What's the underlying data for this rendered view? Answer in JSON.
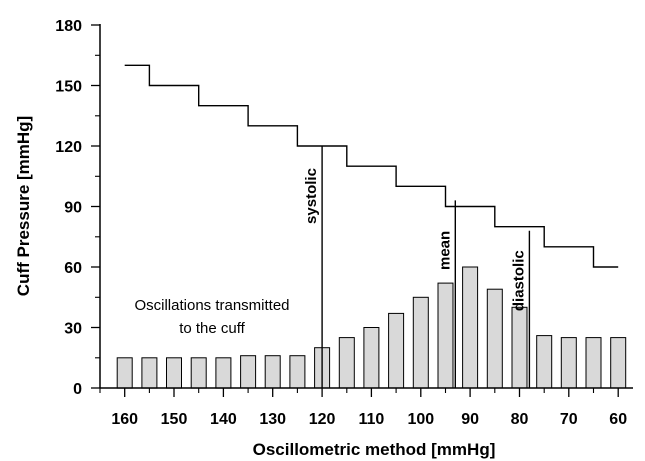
{
  "chart_data": {
    "type": "bar",
    "xlabel": "Oscillometric method [mmHg]",
    "ylabel": "Cuff Pressure [mmHg]",
    "xlim": [
      165,
      57
    ],
    "ylim": [
      0,
      180
    ],
    "x_ticks": [
      160,
      150,
      140,
      130,
      120,
      110,
      100,
      90,
      80,
      70,
      60
    ],
    "y_ticks": [
      0,
      30,
      60,
      90,
      120,
      150,
      180
    ],
    "grid": false,
    "bars": {
      "x": [
        160,
        155,
        150,
        145,
        140,
        135,
        130,
        125,
        120,
        115,
        110,
        105,
        100,
        95,
        90,
        85,
        80,
        75,
        70,
        65,
        60
      ],
      "values": [
        15,
        15,
        15,
        15,
        15,
        16,
        16,
        16,
        20,
        25,
        30,
        37,
        45,
        52,
        60,
        49,
        40,
        26,
        25,
        25,
        25
      ],
      "color": "#d9d9d9"
    },
    "cuff_pressure_steps": {
      "x": [
        160,
        155,
        145,
        135,
        125,
        115,
        105,
        95,
        85,
        75,
        65,
        60
      ],
      "values": [
        160,
        150,
        140,
        130,
        120,
        110,
        100,
        90,
        80,
        70,
        60,
        60
      ]
    },
    "markers": [
      {
        "label": "systolic",
        "x": 120,
        "y_top": 120
      },
      {
        "label": "mean",
        "x": 93,
        "y_top": 93
      },
      {
        "label": "diastolic",
        "x": 78,
        "y_top": 78
      }
    ],
    "annotation": [
      "Oscillations transmitted",
      "to the cuff"
    ]
  }
}
